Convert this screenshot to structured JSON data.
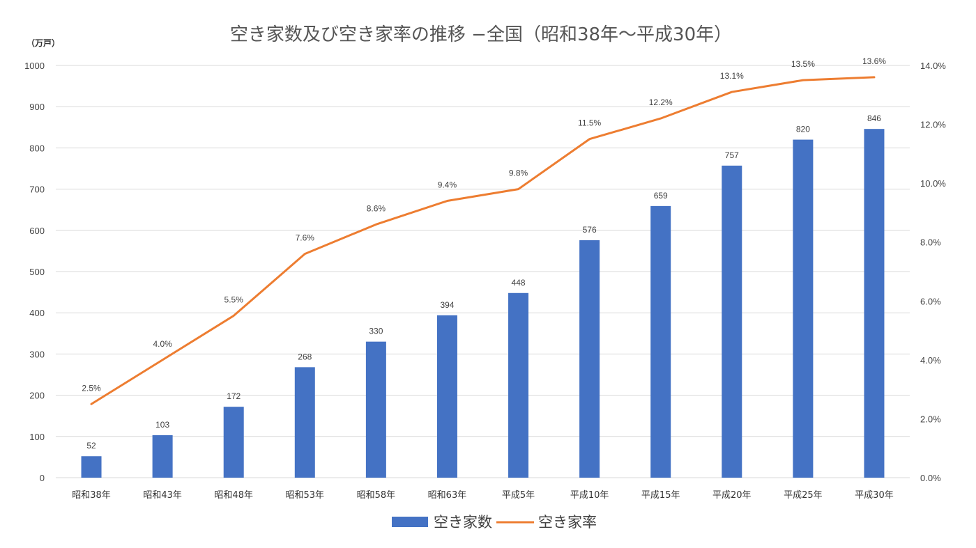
{
  "chart_data": {
    "type": "bar+line",
    "title": "空き家数及び空き家率の推移 −全国（昭和38年〜平成30年）",
    "left_axis_unit": "（万戸）",
    "categories": [
      "昭和38年",
      "昭和43年",
      "昭和48年",
      "昭和53年",
      "昭和58年",
      "昭和63年",
      "平成5年",
      "平成10年",
      "平成15年",
      "平成20年",
      "平成25年",
      "平成30年"
    ],
    "series": [
      {
        "name": "空き家数",
        "kind": "bar",
        "axis": "left",
        "color": "#4472C4",
        "values": [
          52,
          103,
          172,
          268,
          330,
          394,
          448,
          576,
          659,
          757,
          820,
          846
        ],
        "labels": [
          "52",
          "103",
          "172",
          "268",
          "330",
          "394",
          "448",
          "576",
          "659",
          "757",
          "820",
          "846"
        ]
      },
      {
        "name": "空き家率",
        "kind": "line",
        "axis": "right",
        "color": "#ED7D31",
        "values": [
          2.5,
          4.0,
          5.5,
          7.6,
          8.6,
          9.4,
          9.8,
          11.5,
          12.2,
          13.1,
          13.5,
          13.6
        ],
        "labels": [
          "2.5%",
          "4.0%",
          "5.5%",
          "7.6%",
          "8.6%",
          "9.4%",
          "9.8%",
          "11.5%",
          "12.2%",
          "13.1%",
          "13.5%",
          "13.6%"
        ]
      }
    ],
    "left_axis": {
      "min": 0,
      "max": 1000,
      "step": 100,
      "ticks": [
        "0",
        "100",
        "200",
        "300",
        "400",
        "500",
        "600",
        "700",
        "800",
        "900",
        "1000"
      ]
    },
    "right_axis": {
      "min": 0,
      "max": 14,
      "step": 2,
      "ticks": [
        "0.0%",
        "2.0%",
        "4.0%",
        "6.0%",
        "8.0%",
        "10.0%",
        "12.0%",
        "14.0%"
      ]
    },
    "grid": true,
    "legend_position": "bottom-center"
  }
}
